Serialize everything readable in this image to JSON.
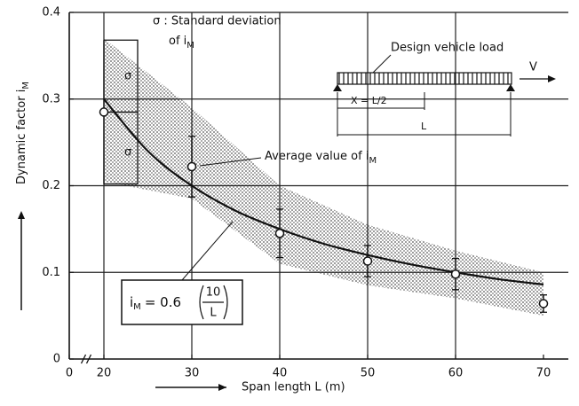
{
  "chart_data": {
    "type": "scatter",
    "xlabel": "Span length  L  (m)",
    "ylabel": "Dynamic factor i",
    "ylabel_sub": "M",
    "xlim": [
      0,
      70
    ],
    "x_axis_break": true,
    "xticks": [
      0,
      20,
      30,
      40,
      50,
      60,
      70
    ],
    "ylim": [
      0,
      0.4
    ],
    "yticks": [
      0,
      0.1,
      0.2,
      0.3,
      0.4
    ],
    "grid": true,
    "series": [
      {
        "name": "Average value of i",
        "name_sub": "M",
        "color": "#111111",
        "x": [
          20,
          30,
          40,
          50,
          60,
          70
        ],
        "values": [
          0.285,
          0.222,
          0.145,
          0.113,
          0.098,
          0.064
        ],
        "sigma": [
          0.083,
          0.035,
          0.028,
          0.018,
          0.018,
          0.01
        ]
      }
    ],
    "band": {
      "x": [
        20,
        30,
        40,
        50,
        60,
        70
      ],
      "upper": [
        0.37,
        0.29,
        0.2,
        0.155,
        0.125,
        0.1
      ],
      "lower": [
        0.205,
        0.185,
        0.11,
        0.085,
        0.07,
        0.05
      ]
    },
    "curve": {
      "x": [
        20,
        25,
        30,
        35,
        40,
        45,
        50,
        55,
        60,
        65,
        70
      ],
      "values": [
        0.3,
        0.24,
        0.2,
        0.171,
        0.15,
        0.133,
        0.12,
        0.109,
        0.1,
        0.092,
        0.086
      ]
    },
    "annotations": {
      "sigma_symbol": "σ",
      "sigma_legend": "σ : Standard deviation",
      "sigma_legend_of": "of i",
      "sigma_legend_sub": "M",
      "load_label": "Design vehicle load",
      "velocity": "V",
      "position": "X = L/2",
      "span": "L",
      "formula_lhs": "i",
      "formula_sub": "M",
      "formula_eq": "= 0.6",
      "formula_num": "10",
      "formula_den": "L"
    }
  }
}
